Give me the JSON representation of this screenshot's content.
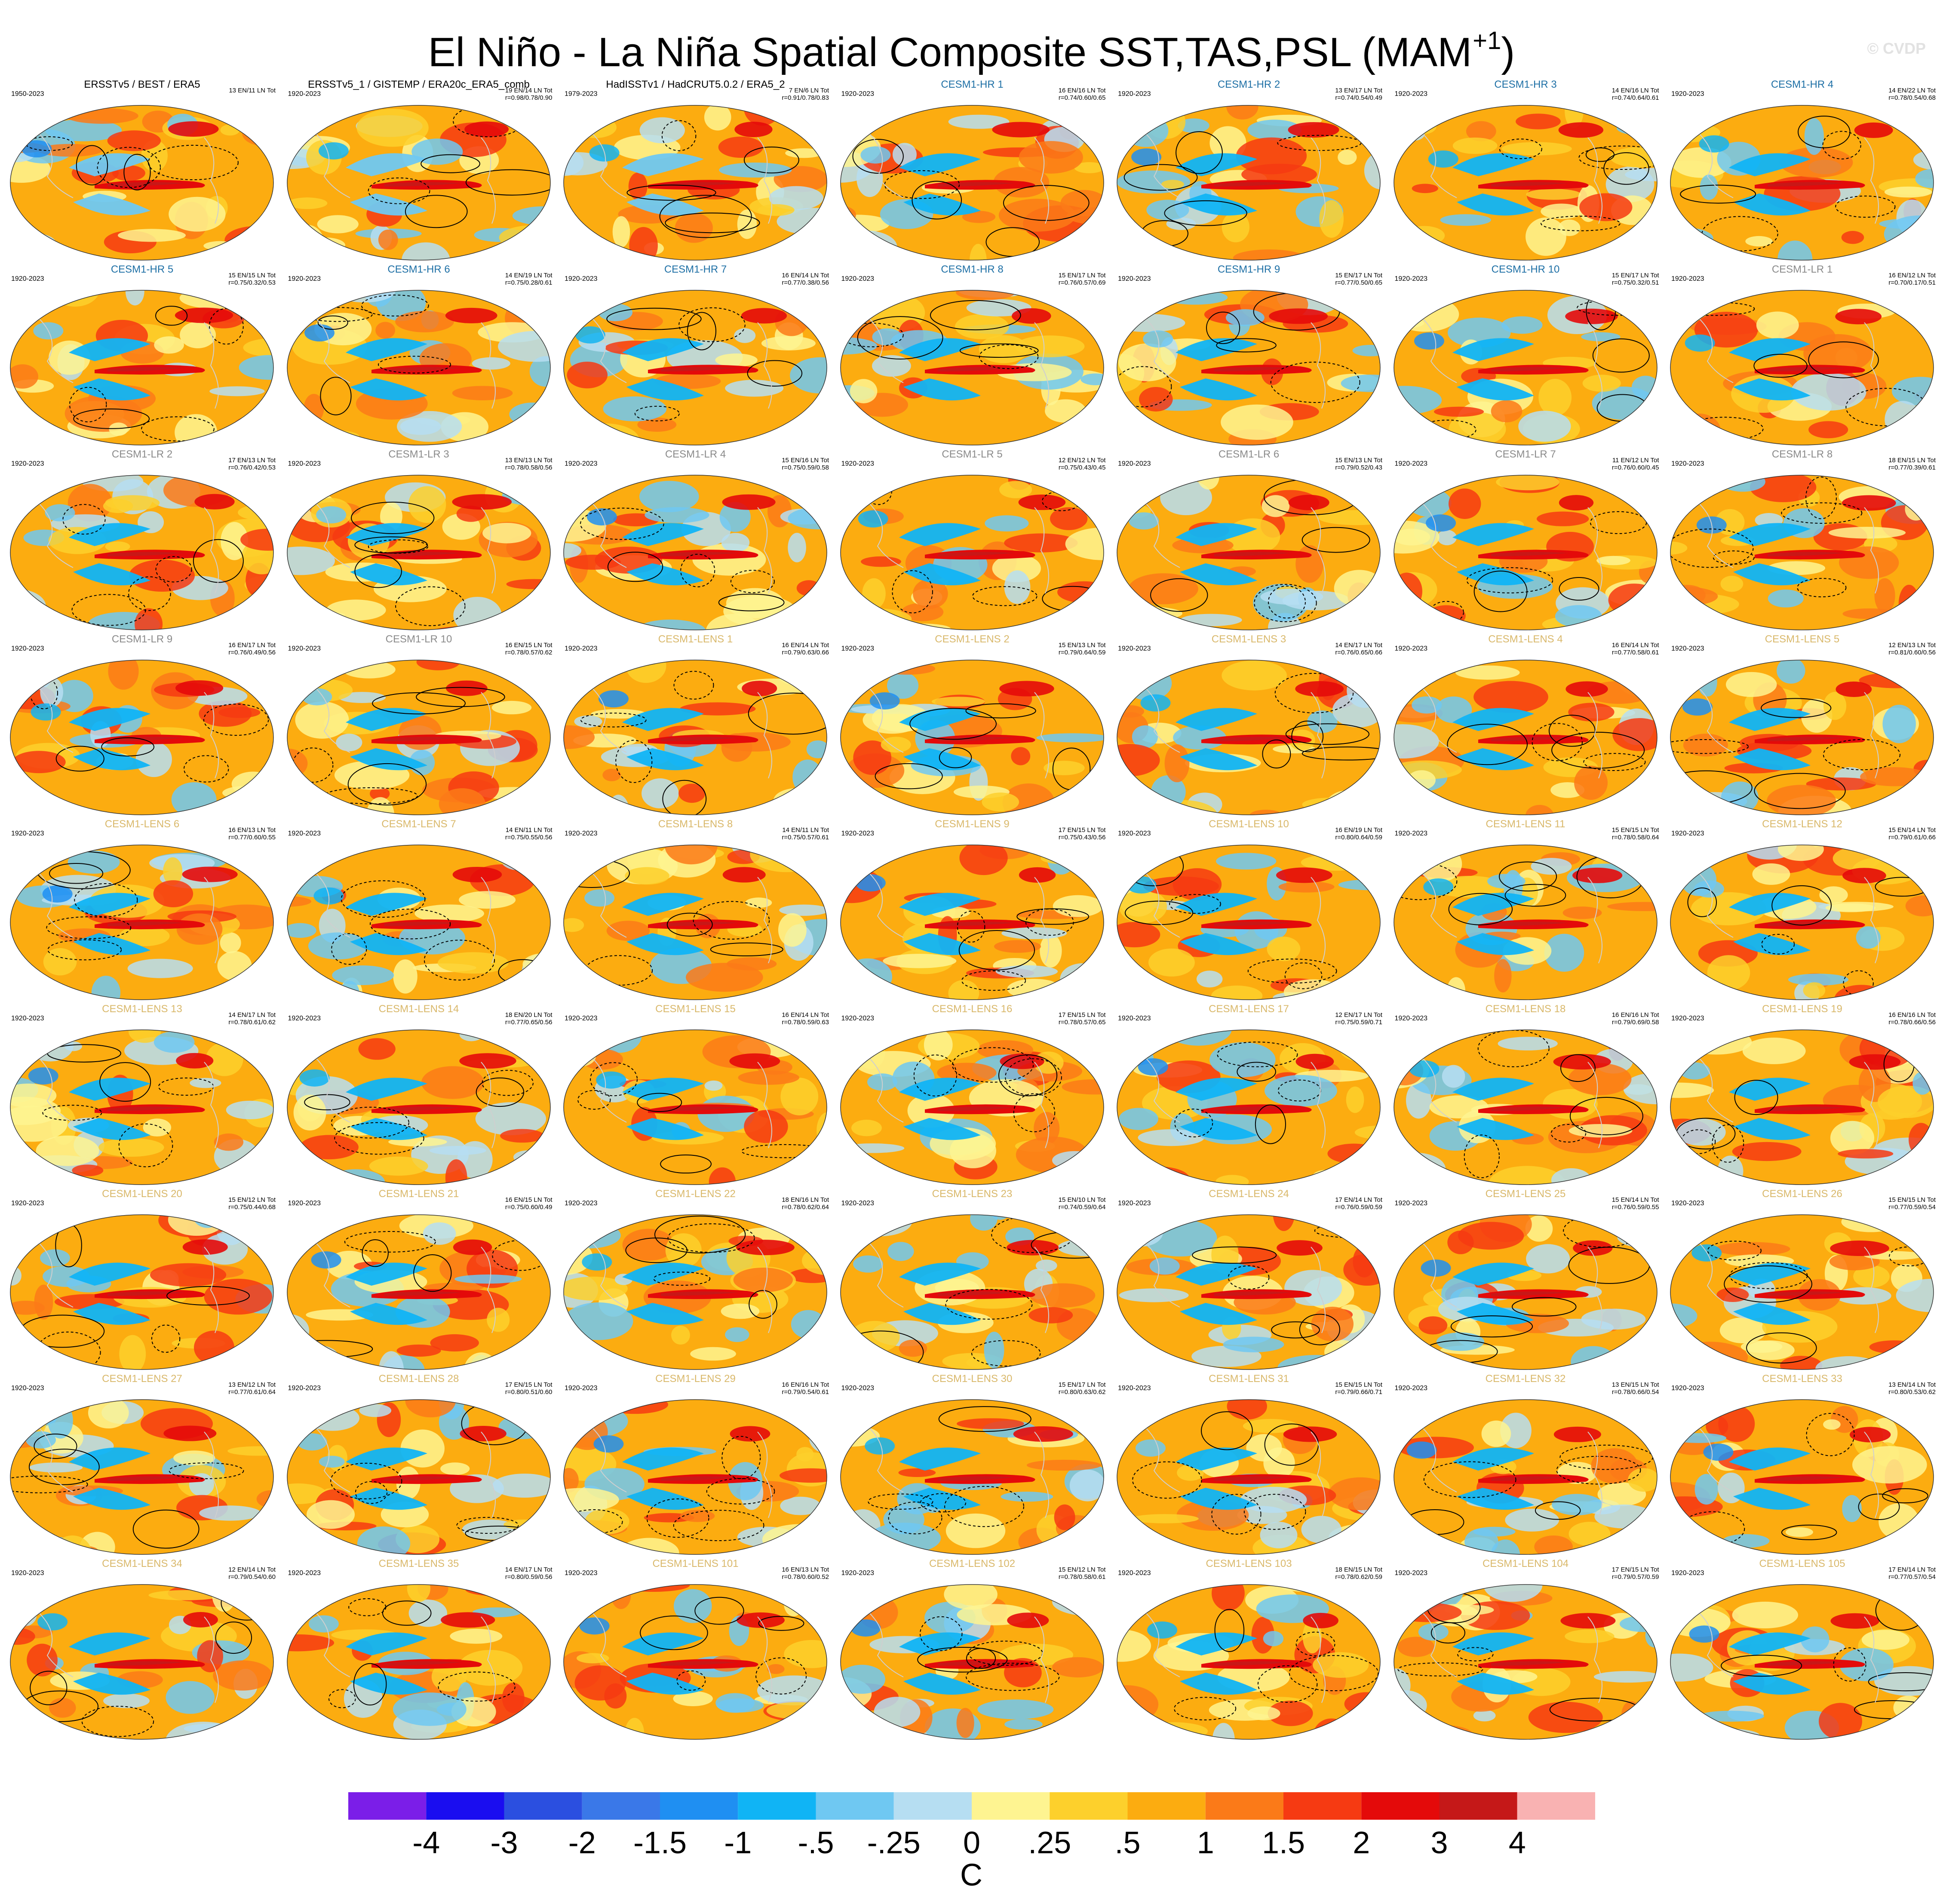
{
  "title": {
    "main": "El Niño - La Niña Spatial Composite SST,TAS,PSL (MAM",
    "superscript": "+1",
    "close": ")"
  },
  "watermark": "© CVDP",
  "colors": {
    "obs_title": "#000000",
    "cesm_hr_title": "#1d6fa5",
    "cesm_lr_title": "#8a8a8a",
    "cesm_lens_title": "#d9b86a"
  },
  "chart_data": {
    "type": "heatmap",
    "rows": 9,
    "columns": 7,
    "panels": [
      {
        "title": "ERSSTv5 / BEST / ERA5",
        "years": "1950-2023",
        "counts": "13 EN/11 LN Tot",
        "corr": "",
        "group": "obs"
      },
      {
        "title": "ERSSTv5_1 / GISTEMP / ERA20c_ERA5_comb",
        "years": "1920-2023",
        "counts": "19 EN/14 LN Tot",
        "corr": "r=0.98/0.78/0.90",
        "group": "obs"
      },
      {
        "title": "HadISSTv1 / HadCRUT5.0.2 / ERA5_2",
        "years": "1979-2023",
        "counts": "7 EN/6 LN Tot",
        "corr": "r=0.91/0.78/0.83",
        "group": "obs"
      },
      {
        "title": "CESM1-HR 1",
        "years": "1920-2023",
        "counts": "16 EN/16 LN Tot",
        "corr": "r=0.74/0.60/0.65",
        "group": "hr"
      },
      {
        "title": "CESM1-HR 2",
        "years": "1920-2023",
        "counts": "13 EN/17 LN Tot",
        "corr": "r=0.74/0.54/0.49",
        "group": "hr"
      },
      {
        "title": "CESM1-HR 3",
        "years": "1920-2023",
        "counts": "14 EN/16 LN Tot",
        "corr": "r=0.74/0.64/0.61",
        "group": "hr"
      },
      {
        "title": "CESM1-HR 4",
        "years": "1920-2023",
        "counts": "14 EN/22 LN Tot",
        "corr": "r=0.78/0.54/0.68",
        "group": "hr"
      },
      {
        "title": "CESM1-HR 5",
        "years": "1920-2023",
        "counts": "15 EN/15 LN Tot",
        "corr": "r=0.75/0.32/0.53",
        "group": "hr"
      },
      {
        "title": "CESM1-HR 6",
        "years": "1920-2023",
        "counts": "14 EN/19 LN Tot",
        "corr": "r=0.75/0.28/0.61",
        "group": "hr"
      },
      {
        "title": "CESM1-HR 7",
        "years": "1920-2023",
        "counts": "16 EN/14 LN Tot",
        "corr": "r=0.77/0.38/0.56",
        "group": "hr"
      },
      {
        "title": "CESM1-HR 8",
        "years": "1920-2023",
        "counts": "15 EN/17 LN Tot",
        "corr": "r=0.76/0.57/0.69",
        "group": "hr"
      },
      {
        "title": "CESM1-HR 9",
        "years": "1920-2023",
        "counts": "15 EN/17 LN Tot",
        "corr": "r=0.77/0.50/0.65",
        "group": "hr"
      },
      {
        "title": "CESM1-HR 10",
        "years": "1920-2023",
        "counts": "15 EN/17 LN Tot",
        "corr": "r=0.75/0.32/0.51",
        "group": "hr"
      },
      {
        "title": "CESM1-LR 1",
        "years": "1920-2023",
        "counts": "16 EN/12 LN Tot",
        "corr": "r=0.70/0.17/0.51",
        "group": "lr"
      },
      {
        "title": "CESM1-LR 2",
        "years": "1920-2023",
        "counts": "17 EN/13 LN Tot",
        "corr": "r=0.76/0.42/0.53",
        "group": "lr"
      },
      {
        "title": "CESM1-LR 3",
        "years": "1920-2023",
        "counts": "13 EN/13 LN Tot",
        "corr": "r=0.78/0.58/0.56",
        "group": "lr"
      },
      {
        "title": "CESM1-LR 4",
        "years": "1920-2023",
        "counts": "15 EN/16 LN Tot",
        "corr": "r=0.75/0.59/0.58",
        "group": "lr"
      },
      {
        "title": "CESM1-LR 5",
        "years": "1920-2023",
        "counts": "12 EN/12 LN Tot",
        "corr": "r=0.75/0.43/0.45",
        "group": "lr"
      },
      {
        "title": "CESM1-LR 6",
        "years": "1920-2023",
        "counts": "15 EN/13 LN Tot",
        "corr": "r=0.79/0.52/0.43",
        "group": "lr"
      },
      {
        "title": "CESM1-LR 7",
        "years": "1920-2023",
        "counts": "11 EN/12 LN Tot",
        "corr": "r=0.76/0.60/0.45",
        "group": "lr"
      },
      {
        "title": "CESM1-LR 8",
        "years": "1920-2023",
        "counts": "18 EN/15 LN Tot",
        "corr": "r=0.77/0.39/0.61",
        "group": "lr"
      },
      {
        "title": "CESM1-LR 9",
        "years": "1920-2023",
        "counts": "16 EN/17 LN Tot",
        "corr": "r=0.76/0.49/0.56",
        "group": "lr"
      },
      {
        "title": "CESM1-LR 10",
        "years": "1920-2023",
        "counts": "16 EN/15 LN Tot",
        "corr": "r=0.78/0.57/0.62",
        "group": "lr"
      },
      {
        "title": "CESM1-LENS 1",
        "years": "1920-2023",
        "counts": "16 EN/14 LN Tot",
        "corr": "r=0.79/0.63/0.66",
        "group": "lens"
      },
      {
        "title": "CESM1-LENS 2",
        "years": "1920-2023",
        "counts": "15 EN/13 LN Tot",
        "corr": "r=0.79/0.64/0.59",
        "group": "lens"
      },
      {
        "title": "CESM1-LENS 3",
        "years": "1920-2023",
        "counts": "14 EN/17 LN Tot",
        "corr": "r=0.76/0.65/0.66",
        "group": "lens"
      },
      {
        "title": "CESM1-LENS 4",
        "years": "1920-2023",
        "counts": "16 EN/14 LN Tot",
        "corr": "r=0.77/0.58/0.61",
        "group": "lens"
      },
      {
        "title": "CESM1-LENS 5",
        "years": "1920-2023",
        "counts": "12 EN/13 LN Tot",
        "corr": "r=0.81/0.60/0.56",
        "group": "lens"
      },
      {
        "title": "CESM1-LENS 6",
        "years": "1920-2023",
        "counts": "16 EN/13 LN Tot",
        "corr": "r=0.77/0.60/0.55",
        "group": "lens"
      },
      {
        "title": "CESM1-LENS 7",
        "years": "1920-2023",
        "counts": "14 EN/11 LN Tot",
        "corr": "r=0.75/0.55/0.56",
        "group": "lens"
      },
      {
        "title": "CESM1-LENS 8",
        "years": "1920-2023",
        "counts": "14 EN/11 LN Tot",
        "corr": "r=0.75/0.57/0.61",
        "group": "lens"
      },
      {
        "title": "CESM1-LENS 9",
        "years": "1920-2023",
        "counts": "17 EN/15 LN Tot",
        "corr": "r=0.75/0.43/0.56",
        "group": "lens"
      },
      {
        "title": "CESM1-LENS 10",
        "years": "1920-2023",
        "counts": "16 EN/19 LN Tot",
        "corr": "r=0.80/0.64/0.59",
        "group": "lens"
      },
      {
        "title": "CESM1-LENS 11",
        "years": "1920-2023",
        "counts": "15 EN/15 LN Tot",
        "corr": "r=0.78/0.58/0.64",
        "group": "lens"
      },
      {
        "title": "CESM1-LENS 12",
        "years": "1920-2023",
        "counts": "15 EN/14 LN Tot",
        "corr": "r=0.79/0.61/0.66",
        "group": "lens"
      },
      {
        "title": "CESM1-LENS 13",
        "years": "1920-2023",
        "counts": "14 EN/17 LN Tot",
        "corr": "r=0.78/0.61/0.62",
        "group": "lens"
      },
      {
        "title": "CESM1-LENS 14",
        "years": "1920-2023",
        "counts": "18 EN/20 LN Tot",
        "corr": "r=0.77/0.65/0.56",
        "group": "lens"
      },
      {
        "title": "CESM1-LENS 15",
        "years": "1920-2023",
        "counts": "16 EN/14 LN Tot",
        "corr": "r=0.78/0.59/0.63",
        "group": "lens"
      },
      {
        "title": "CESM1-LENS 16",
        "years": "1920-2023",
        "counts": "17 EN/15 LN Tot",
        "corr": "r=0.78/0.57/0.65",
        "group": "lens"
      },
      {
        "title": "CESM1-LENS 17",
        "years": "1920-2023",
        "counts": "12 EN/17 LN Tot",
        "corr": "r=0.75/0.59/0.71",
        "group": "lens"
      },
      {
        "title": "CESM1-LENS 18",
        "years": "1920-2023",
        "counts": "16 EN/16 LN Tot",
        "corr": "r=0.79/0.69/0.58",
        "group": "lens"
      },
      {
        "title": "CESM1-LENS 19",
        "years": "1920-2023",
        "counts": "16 EN/16 LN Tot",
        "corr": "r=0.78/0.66/0.56",
        "group": "lens"
      },
      {
        "title": "CESM1-LENS 20",
        "years": "1920-2023",
        "counts": "15 EN/12 LN Tot",
        "corr": "r=0.75/0.44/0.68",
        "group": "lens"
      },
      {
        "title": "CESM1-LENS 21",
        "years": "1920-2023",
        "counts": "16 EN/15 LN Tot",
        "corr": "r=0.75/0.60/0.49",
        "group": "lens"
      },
      {
        "title": "CESM1-LENS 22",
        "years": "1920-2023",
        "counts": "18 EN/16 LN Tot",
        "corr": "r=0.78/0.62/0.64",
        "group": "lens"
      },
      {
        "title": "CESM1-LENS 23",
        "years": "1920-2023",
        "counts": "15 EN/10 LN Tot",
        "corr": "r=0.74/0.59/0.64",
        "group": "lens"
      },
      {
        "title": "CESM1-LENS 24",
        "years": "1920-2023",
        "counts": "17 EN/14 LN Tot",
        "corr": "r=0.76/0.59/0.59",
        "group": "lens"
      },
      {
        "title": "CESM1-LENS 25",
        "years": "1920-2023",
        "counts": "15 EN/14 LN Tot",
        "corr": "r=0.76/0.59/0.55",
        "group": "lens"
      },
      {
        "title": "CESM1-LENS 26",
        "years": "1920-2023",
        "counts": "15 EN/15 LN Tot",
        "corr": "r=0.77/0.59/0.54",
        "group": "lens"
      },
      {
        "title": "CESM1-LENS 27",
        "years": "1920-2023",
        "counts": "13 EN/12 LN Tot",
        "corr": "r=0.77/0.61/0.64",
        "group": "lens"
      },
      {
        "title": "CESM1-LENS 28",
        "years": "1920-2023",
        "counts": "17 EN/15 LN Tot",
        "corr": "r=0.80/0.51/0.60",
        "group": "lens"
      },
      {
        "title": "CESM1-LENS 29",
        "years": "1920-2023",
        "counts": "16 EN/16 LN Tot",
        "corr": "r=0.79/0.54/0.61",
        "group": "lens"
      },
      {
        "title": "CESM1-LENS 30",
        "years": "1920-2023",
        "counts": "15 EN/17 LN Tot",
        "corr": "r=0.80/0.63/0.62",
        "group": "lens"
      },
      {
        "title": "CESM1-LENS 31",
        "years": "1920-2023",
        "counts": "15 EN/15 LN Tot",
        "corr": "r=0.79/0.66/0.71",
        "group": "lens"
      },
      {
        "title": "CESM1-LENS 32",
        "years": "1920-2023",
        "counts": "13 EN/15 LN Tot",
        "corr": "r=0.78/0.66/0.54",
        "group": "lens"
      },
      {
        "title": "CESM1-LENS 33",
        "years": "1920-2023",
        "counts": "13 EN/14 LN Tot",
        "corr": "r=0.80/0.53/0.62",
        "group": "lens"
      },
      {
        "title": "CESM1-LENS 34",
        "years": "1920-2023",
        "counts": "12 EN/14 LN Tot",
        "corr": "r=0.79/0.54/0.60",
        "group": "lens"
      },
      {
        "title": "CESM1-LENS 35",
        "years": "1920-2023",
        "counts": "14 EN/17 LN Tot",
        "corr": "r=0.80/0.59/0.56",
        "group": "lens"
      },
      {
        "title": "CESM1-LENS 101",
        "years": "1920-2023",
        "counts": "16 EN/13 LN Tot",
        "corr": "r=0.78/0.60/0.52",
        "group": "lens"
      },
      {
        "title": "CESM1-LENS 102",
        "years": "1920-2023",
        "counts": "15 EN/12 LN Tot",
        "corr": "r=0.78/0.58/0.61",
        "group": "lens"
      },
      {
        "title": "CESM1-LENS 103",
        "years": "1920-2023",
        "counts": "18 EN/15 LN Tot",
        "corr": "r=0.78/0.62/0.59",
        "group": "lens"
      },
      {
        "title": "CESM1-LENS 104",
        "years": "1920-2023",
        "counts": "17 EN/15 LN Tot",
        "corr": "r=0.79/0.57/0.59",
        "group": "lens"
      },
      {
        "title": "CESM1-LENS 105",
        "years": "1920-2023",
        "counts": "17 EN/14 LN Tot",
        "corr": "r=0.77/0.57/0.54",
        "group": "lens"
      }
    ],
    "colorbar": {
      "units": "C",
      "labels": [
        "-4",
        "-3",
        "-2",
        "-1.5",
        "-1",
        "-.5",
        "-.25",
        "0",
        ".25",
        ".5",
        "1",
        "1.5",
        "2",
        "3",
        "4"
      ],
      "colors": [
        "#7b1ee8",
        "#1a0df0",
        "#2b4fe0",
        "#3a78e8",
        "#1f8ff2",
        "#10b4f5",
        "#6fc8f2",
        "#b6def2",
        "#fef491",
        "#fdd02c",
        "#fcac10",
        "#fb7a18",
        "#f63a12",
        "#e40a0a",
        "#c51818",
        "#f9b2b2"
      ]
    }
  }
}
